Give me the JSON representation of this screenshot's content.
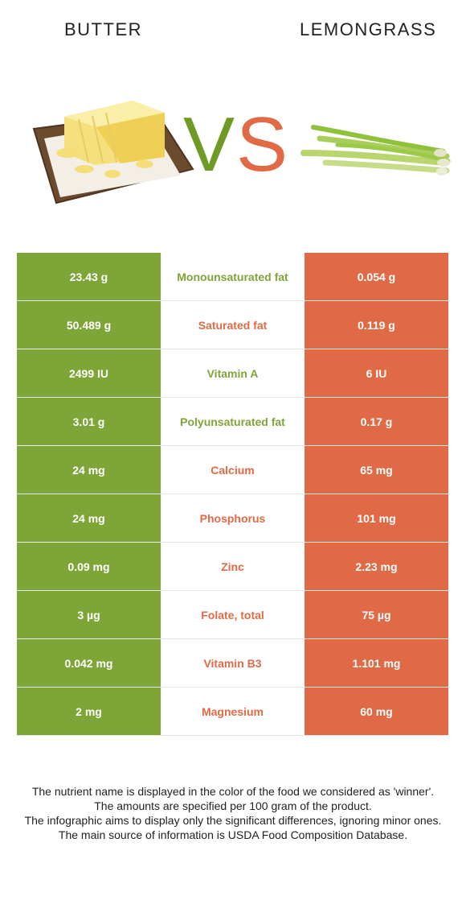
{
  "left_food": {
    "name": "BUTTER",
    "color": "#7ea537"
  },
  "right_food": {
    "name": "LEMONGRASS",
    "color": "#e06a45"
  },
  "vs": {
    "v": "V",
    "s": "S"
  },
  "rows": [
    {
      "left": "23.43 g",
      "nutrient": "Monounsaturated fat",
      "right": "0.054 g",
      "winner": "left"
    },
    {
      "left": "50.489 g",
      "nutrient": "Saturated fat",
      "right": "0.119 g",
      "winner": "right"
    },
    {
      "left": "2499 IU",
      "nutrient": "Vitamin A",
      "right": "6 IU",
      "winner": "left"
    },
    {
      "left": "3.01 g",
      "nutrient": "Polyunsaturated fat",
      "right": "0.17 g",
      "winner": "left"
    },
    {
      "left": "24 mg",
      "nutrient": "Calcium",
      "right": "65 mg",
      "winner": "right"
    },
    {
      "left": "24 mg",
      "nutrient": "Phosphorus",
      "right": "101 mg",
      "winner": "right"
    },
    {
      "left": "0.09 mg",
      "nutrient": "Zinc",
      "right": "2.23 mg",
      "winner": "right"
    },
    {
      "left": "3 µg",
      "nutrient": "Folate, total",
      "right": "75 µg",
      "winner": "right"
    },
    {
      "left": "0.042 mg",
      "nutrient": "Vitamin B3",
      "right": "1.101 mg",
      "winner": "right"
    },
    {
      "left": "2 mg",
      "nutrient": "Magnesium",
      "right": "60 mg",
      "winner": "right"
    }
  ],
  "footer": [
    "The nutrient name is displayed in the color of the food we considered as 'winner'.",
    "The amounts are specified per 100 gram of the product.",
    "The infographic aims to display only the significant differences, ignoring minor ones.",
    "The main source of information is USDA Food Composition Database."
  ]
}
